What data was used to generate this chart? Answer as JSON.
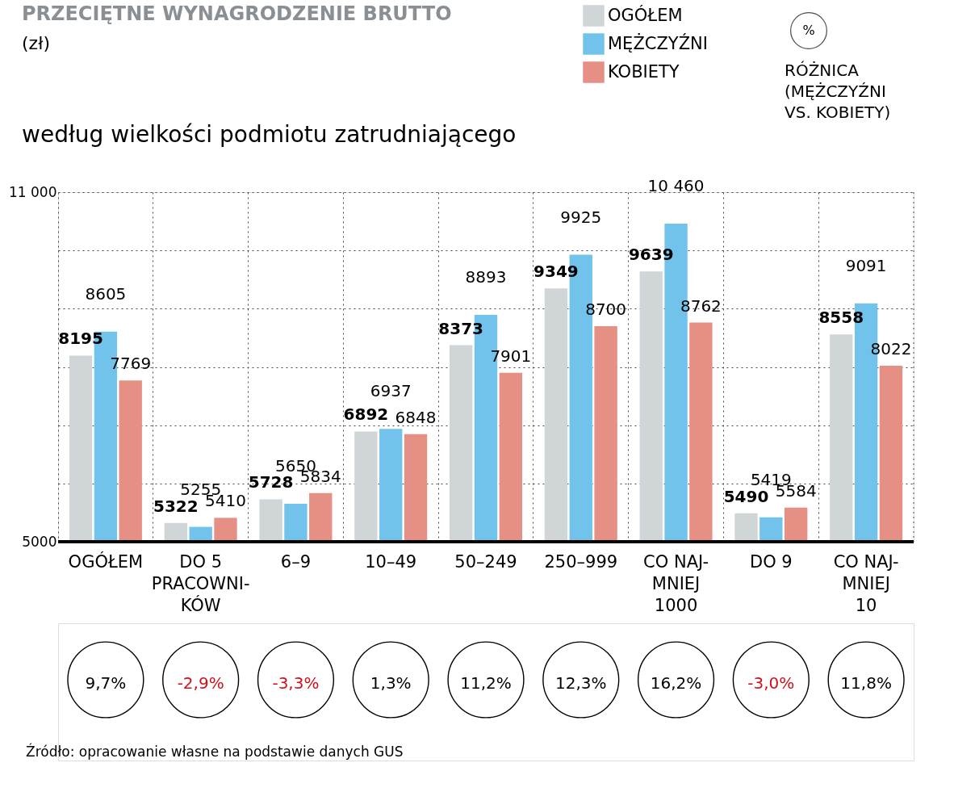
{
  "chart_data": {
    "type": "bar",
    "title": "PRZECIĘTNE WYNAGRODZENIE BRUTTO",
    "subtitle": "(zł)",
    "categories": [
      "OGÓŁEM",
      "DO 5\nPRACOWNI-\nKÓW",
      "6–9",
      "10–49",
      "50–249",
      "250–999",
      "CO NAJ-\nMNIEJ\n1000",
      "DO 9",
      "CO NAJ-\nMNIEJ\n10"
    ],
    "series": [
      {
        "name": "OGÓŁEM",
        "color": "#d0d5d8",
        "values": [
          8195,
          5322,
          5728,
          6892,
          8373,
          9349,
          9639,
          5490,
          8558
        ],
        "value_labels": [
          "8195",
          "5322",
          "5728",
          "6892",
          "8373",
          "9349",
          "9639",
          "5490",
          "8558"
        ]
      },
      {
        "name": "MĘŻCZYŹNI",
        "color": "#72c3ec",
        "values": [
          8605,
          5255,
          5650,
          6937,
          8893,
          9925,
          10460,
          5419,
          9091
        ],
        "value_labels": [
          "8605",
          "5255",
          "5650",
          "6937",
          "8893",
          "9925",
          "10 460",
          "5419",
          "9091"
        ]
      },
      {
        "name": "KOBIETY",
        "color": "#e68f84",
        "values": [
          7769,
          5410,
          5834,
          6848,
          7901,
          8700,
          8762,
          5584,
          8022
        ],
        "value_labels": [
          "7769",
          "5410",
          "5834",
          "6848",
          "7901",
          "8700",
          "8762",
          "5584",
          "8022"
        ]
      }
    ],
    "ylim": [
      5000,
      11000
    ],
    "yticks": [
      5000,
      {
        "value": 6000,
        "label": null
      },
      {
        "value": 7000,
        "label": null
      },
      {
        "value": 8000,
        "label": null
      },
      {
        "value": 9000,
        "label": null
      },
      {
        "value": 10000,
        "label": null
      },
      {
        "value": 11000,
        "label": "11 000"
      }
    ],
    "grid": true,
    "legend": "top right",
    "annotations": [
      "według wielkości podmiotu zatrudniającego",
      "%",
      "RÓŻNICA\n(MĘŻCZYŹNI\nVS. KOBIETY)",
      "Źródło: opracowanie własne na podstawie danych GUS",
      "9,7%",
      "-2,9%",
      "-3,3%",
      "1,3%",
      "11,2%",
      "12,3%",
      "16,2%",
      "-3,0%",
      "11,8%"
    ]
  }
}
